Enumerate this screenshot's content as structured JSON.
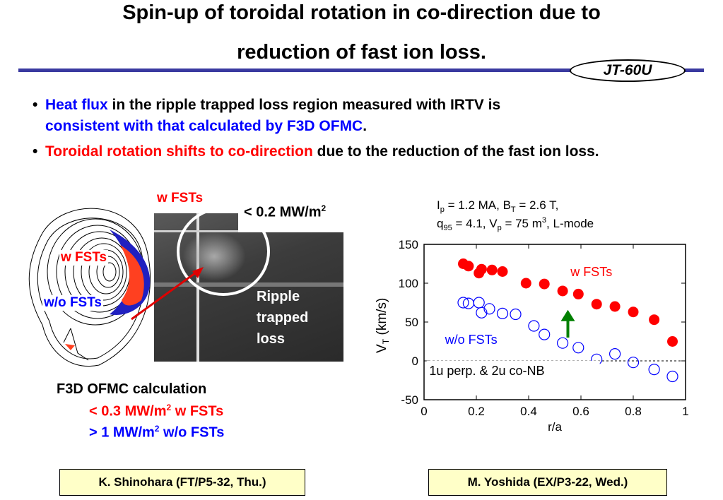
{
  "title": {
    "line1": "Spin-up of toroidal rotation in co-direction due to",
    "line2": "reduction of fast ion loss."
  },
  "badge": {
    "label": "JT-60U"
  },
  "bullets": [
    {
      "part1": "Heat flux",
      "part2": " in the ripple trapped loss region measured with IRTV is ",
      "part3": "consistent with that calculated by F3D OFMC",
      "part4": "."
    },
    {
      "part1": "Toroidal rotation shifts to co-direction",
      "part2": " due to the reduction of the fast ion loss."
    }
  ],
  "left_figure": {
    "wfst_top_label": "w FSTs",
    "wfst_label": "w FSTs",
    "wofst_label": "w/o FSTs",
    "flux_label": "< 0.2 MW/m",
    "flux_sup": "2",
    "ripple_line1": "Ripple",
    "ripple_line2": "trapped",
    "ripple_line3": "loss"
  },
  "ofmc": {
    "heading": "F3D OFMC calculation",
    "line1_val": "< 0.3 MW/m",
    "line1_sup": "2",
    "line1_tag": " w FSTs",
    "line2_val": "> 1 MW/m",
    "line2_sup": "2",
    "line2_tag": " w/o FSTs"
  },
  "refs": {
    "left": "K. Shinohara (FT/P5-32, Thu.)",
    "right": "M. Yoshida (EX/P3-22, Wed.)"
  },
  "chart_data": {
    "type": "scatter",
    "params_line1": "I_p = 1.2 MA, B_T = 2.6 T,",
    "params_line2": "q_95 = 4.1, V_p = 75 m^3, L-mode",
    "xlabel": "r/a",
    "ylabel": "V_T (km/s)",
    "xlim": [
      0,
      1
    ],
    "ylim": [
      -50,
      150
    ],
    "xticks": [
      "0",
      "0.2",
      "0.4",
      "0.6",
      "0.8",
      "1"
    ],
    "yticks": [
      "150",
      "100",
      "50",
      "0",
      "-50"
    ],
    "annotation": "1u perp. & 2u co-NB",
    "arrow_color": "#008000",
    "series": [
      {
        "name": "w FSTs",
        "marker": "filled",
        "color": "#ff0000",
        "x": [
          0.15,
          0.17,
          0.21,
          0.22,
          0.26,
          0.3,
          0.39,
          0.46,
          0.53,
          0.59,
          0.66,
          0.73,
          0.8,
          0.88,
          0.95
        ],
        "y": [
          125,
          122,
          113,
          118,
          117,
          115,
          100,
          99,
          90,
          86,
          73,
          70,
          63,
          53,
          25
        ]
      },
      {
        "name": "w/o FSTs",
        "marker": "open",
        "color": "#0000ff",
        "x": [
          0.15,
          0.17,
          0.21,
          0.22,
          0.25,
          0.3,
          0.35,
          0.42,
          0.46,
          0.53,
          0.59,
          0.66,
          0.73,
          0.8,
          0.88,
          0.95
        ],
        "y": [
          75,
          74,
          75,
          62,
          67,
          61,
          60,
          45,
          34,
          23,
          17,
          2,
          9,
          -2,
          -11,
          -20
        ]
      }
    ]
  }
}
